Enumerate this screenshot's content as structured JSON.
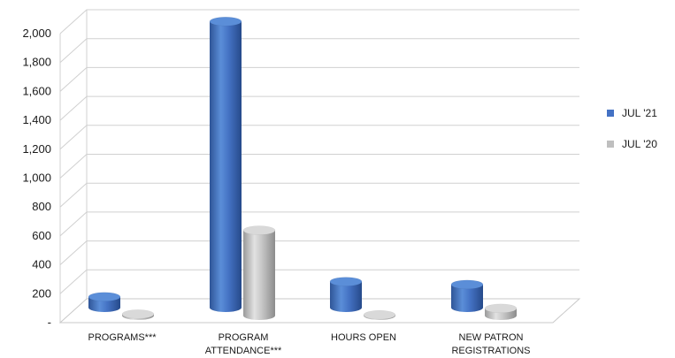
{
  "chart_data": {
    "type": "bar",
    "categories": [
      [
        "PROGRAMS***"
      ],
      [
        "PROGRAM",
        "ATTENDANCE***"
      ],
      [
        "HOURS OPEN"
      ],
      [
        "NEW PATRON",
        "REGISTRATIONS"
      ]
    ],
    "series": [
      {
        "name": "JUL '21",
        "values": [
          75,
          1980,
          180,
          160
        ],
        "color": "#4472C4"
      },
      {
        "name": "JUL '20",
        "values": [
          10,
          590,
          5,
          50
        ],
        "color": "#BFBFBF"
      }
    ],
    "ylim": [
      0,
      2000
    ],
    "yticks": [
      "-",
      "200",
      "400",
      "600",
      "800",
      "1,000",
      "1,200",
      "1,400",
      "1,600",
      "1,800",
      "2,000"
    ],
    "ytick_values": [
      0,
      200,
      400,
      600,
      800,
      1000,
      1200,
      1400,
      1600,
      1800,
      2000
    ],
    "grid": true,
    "legend_position": "right",
    "style": "3d-cylinder"
  }
}
